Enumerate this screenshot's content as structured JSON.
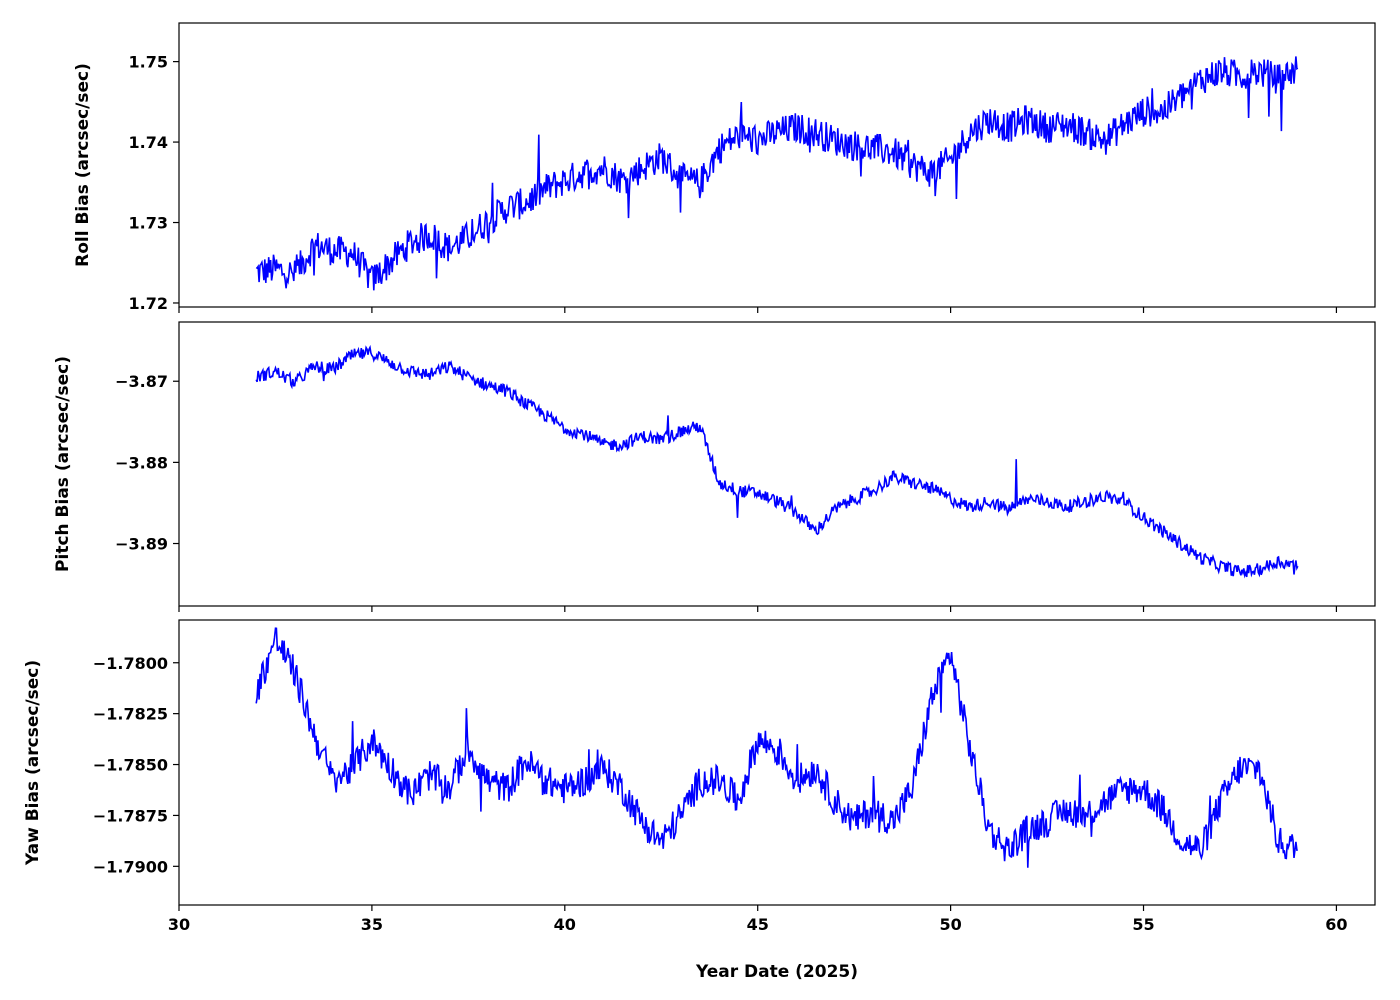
{
  "chart_data": [
    {
      "type": "line",
      "ylabel": "Roll Bias (arcsec/sec)",
      "xlim": [
        30,
        61
      ],
      "ylim": [
        1.7195,
        1.7548
      ],
      "yticks": [
        1.72,
        1.73,
        1.74,
        1.75
      ],
      "ytick_labels": [
        "1.72",
        "1.73",
        "1.74",
        "1.75"
      ],
      "grid": false,
      "color": "#0000ff",
      "series": [
        {
          "x": [
            32.0,
            32.5,
            33.0,
            33.5,
            34.0,
            34.5,
            35.0,
            35.5,
            36.0,
            36.5,
            37.0,
            37.5,
            38.0,
            38.5,
            39.0,
            39.5,
            40.0,
            40.5,
            41.0,
            41.5,
            42.0,
            42.5,
            43.0,
            43.5,
            44.0,
            44.5,
            45.0,
            45.5,
            46.0,
            46.5,
            47.0,
            47.5,
            48.0,
            48.5,
            49.0,
            49.5,
            50.0,
            50.5,
            51.0,
            51.5,
            52.0,
            52.5,
            53.0,
            53.5,
            54.0,
            54.5,
            55.0,
            55.5,
            56.0,
            56.5,
            57.0,
            57.5,
            58.0,
            58.5,
            59.0
          ],
          "y": [
            1.7238,
            1.7242,
            1.7235,
            1.7272,
            1.7265,
            1.7262,
            1.7228,
            1.7252,
            1.7275,
            1.7285,
            1.7268,
            1.7282,
            1.7302,
            1.7318,
            1.7325,
            1.7342,
            1.7352,
            1.7362,
            1.7368,
            1.7352,
            1.7368,
            1.7382,
            1.7355,
            1.7348,
            1.7392,
            1.7408,
            1.7402,
            1.7412,
            1.7418,
            1.7412,
            1.7402,
            1.7396,
            1.7392,
            1.7388,
            1.7372,
            1.7362,
            1.7378,
            1.7412,
            1.7428,
            1.7418,
            1.7428,
            1.7418,
            1.7422,
            1.7412,
            1.7402,
            1.7422,
            1.7438,
            1.7438,
            1.7458,
            1.7478,
            1.7488,
            1.7482,
            1.7488,
            1.7478,
            1.7492
          ]
        }
      ]
    },
    {
      "type": "line",
      "ylabel": "Pitch Bias (arcsec/sec)",
      "xlim": [
        30,
        61
      ],
      "ylim": [
        -3.8977,
        -3.8627
      ],
      "yticks": [
        -3.87,
        -3.88,
        -3.89
      ],
      "ytick_labels": [
        "−3.87",
        "−3.88",
        "−3.89"
      ],
      "grid": false,
      "color": "#0000ff",
      "series": [
        {
          "x": [
            32.0,
            32.5,
            33.0,
            33.5,
            34.0,
            34.5,
            35.0,
            35.5,
            36.0,
            36.5,
            37.0,
            37.5,
            38.0,
            38.5,
            39.0,
            39.5,
            40.0,
            40.5,
            41.0,
            41.5,
            42.0,
            42.5,
            43.0,
            43.5,
            44.0,
            44.5,
            45.0,
            45.5,
            46.0,
            46.5,
            47.0,
            47.5,
            48.0,
            48.5,
            49.0,
            49.5,
            50.0,
            50.5,
            51.0,
            51.5,
            52.0,
            52.5,
            53.0,
            53.5,
            54.0,
            54.5,
            55.0,
            55.5,
            56.0,
            56.5,
            57.0,
            57.5,
            58.0,
            58.5,
            59.0
          ],
          "y": [
            -3.8695,
            -3.8688,
            -3.8702,
            -3.8682,
            -3.8685,
            -3.8668,
            -3.8665,
            -3.8678,
            -3.8688,
            -3.8692,
            -3.8682,
            -3.8695,
            -3.8705,
            -3.8712,
            -3.8728,
            -3.8742,
            -3.8758,
            -3.8765,
            -3.8778,
            -3.8778,
            -3.8768,
            -3.8772,
            -3.8762,
            -3.8755,
            -3.8825,
            -3.8835,
            -3.8838,
            -3.8848,
            -3.8862,
            -3.8885,
            -3.8858,
            -3.8845,
            -3.8835,
            -3.8818,
            -3.8825,
            -3.8832,
            -3.8845,
            -3.8855,
            -3.8848,
            -3.8858,
            -3.8845,
            -3.8848,
            -3.8855,
            -3.8848,
            -3.8842,
            -3.8848,
            -3.8868,
            -3.8885,
            -3.8902,
            -3.8918,
            -3.8928,
            -3.8935,
            -3.8932,
            -3.8922,
            -3.8928
          ]
        }
      ]
    },
    {
      "type": "line",
      "xlabel": "Year Date (2025)",
      "ylabel": "Yaw Bias (arcsec/sec)",
      "xlim": [
        30,
        61
      ],
      "ylim": [
        -1.7919,
        -1.7779
      ],
      "xticks": [
        30,
        35,
        40,
        45,
        50,
        55,
        60
      ],
      "xtick_labels": [
        "30",
        "35",
        "40",
        "45",
        "50",
        "55",
        "60"
      ],
      "yticks": [
        -1.78,
        -1.7825,
        -1.785,
        -1.7875,
        -1.79
      ],
      "ytick_labels": [
        "−1.7800",
        "−1.7825",
        "−1.7850",
        "−1.7875",
        "−1.7900"
      ],
      "grid": false,
      "color": "#0000ff",
      "series": [
        {
          "x": [
            32.0,
            32.5,
            33.0,
            33.5,
            34.0,
            34.5,
            35.0,
            35.5,
            36.0,
            36.5,
            37.0,
            37.5,
            38.0,
            38.5,
            39.0,
            39.5,
            40.0,
            40.5,
            41.0,
            41.5,
            42.0,
            42.5,
            43.0,
            43.5,
            44.0,
            44.5,
            45.0,
            45.5,
            46.0,
            46.5,
            47.0,
            47.5,
            48.0,
            48.5,
            49.0,
            49.5,
            50.0,
            50.5,
            51.0,
            51.5,
            52.0,
            52.5,
            53.0,
            53.5,
            54.0,
            54.5,
            55.0,
            55.5,
            56.0,
            56.5,
            57.0,
            57.5,
            58.0,
            58.5,
            59.0
          ],
          "y": [
            -1.7815,
            -1.7788,
            -1.7805,
            -1.7835,
            -1.7858,
            -1.7852,
            -1.7838,
            -1.7852,
            -1.7865,
            -1.7855,
            -1.7862,
            -1.7842,
            -1.7858,
            -1.7862,
            -1.7848,
            -1.7858,
            -1.7862,
            -1.7858,
            -1.7852,
            -1.7862,
            -1.7878,
            -1.7888,
            -1.7875,
            -1.7858,
            -1.7858,
            -1.7868,
            -1.7838,
            -1.7842,
            -1.7858,
            -1.7852,
            -1.7868,
            -1.7878,
            -1.7872,
            -1.7878,
            -1.7862,
            -1.7818,
            -1.7795,
            -1.7842,
            -1.7882,
            -1.7892,
            -1.7882,
            -1.7878,
            -1.7872,
            -1.7875,
            -1.7868,
            -1.7862,
            -1.7862,
            -1.7872,
            -1.7888,
            -1.7892,
            -1.7868,
            -1.7852,
            -1.7852,
            -1.7888,
            -1.7892
          ]
        }
      ]
    }
  ]
}
